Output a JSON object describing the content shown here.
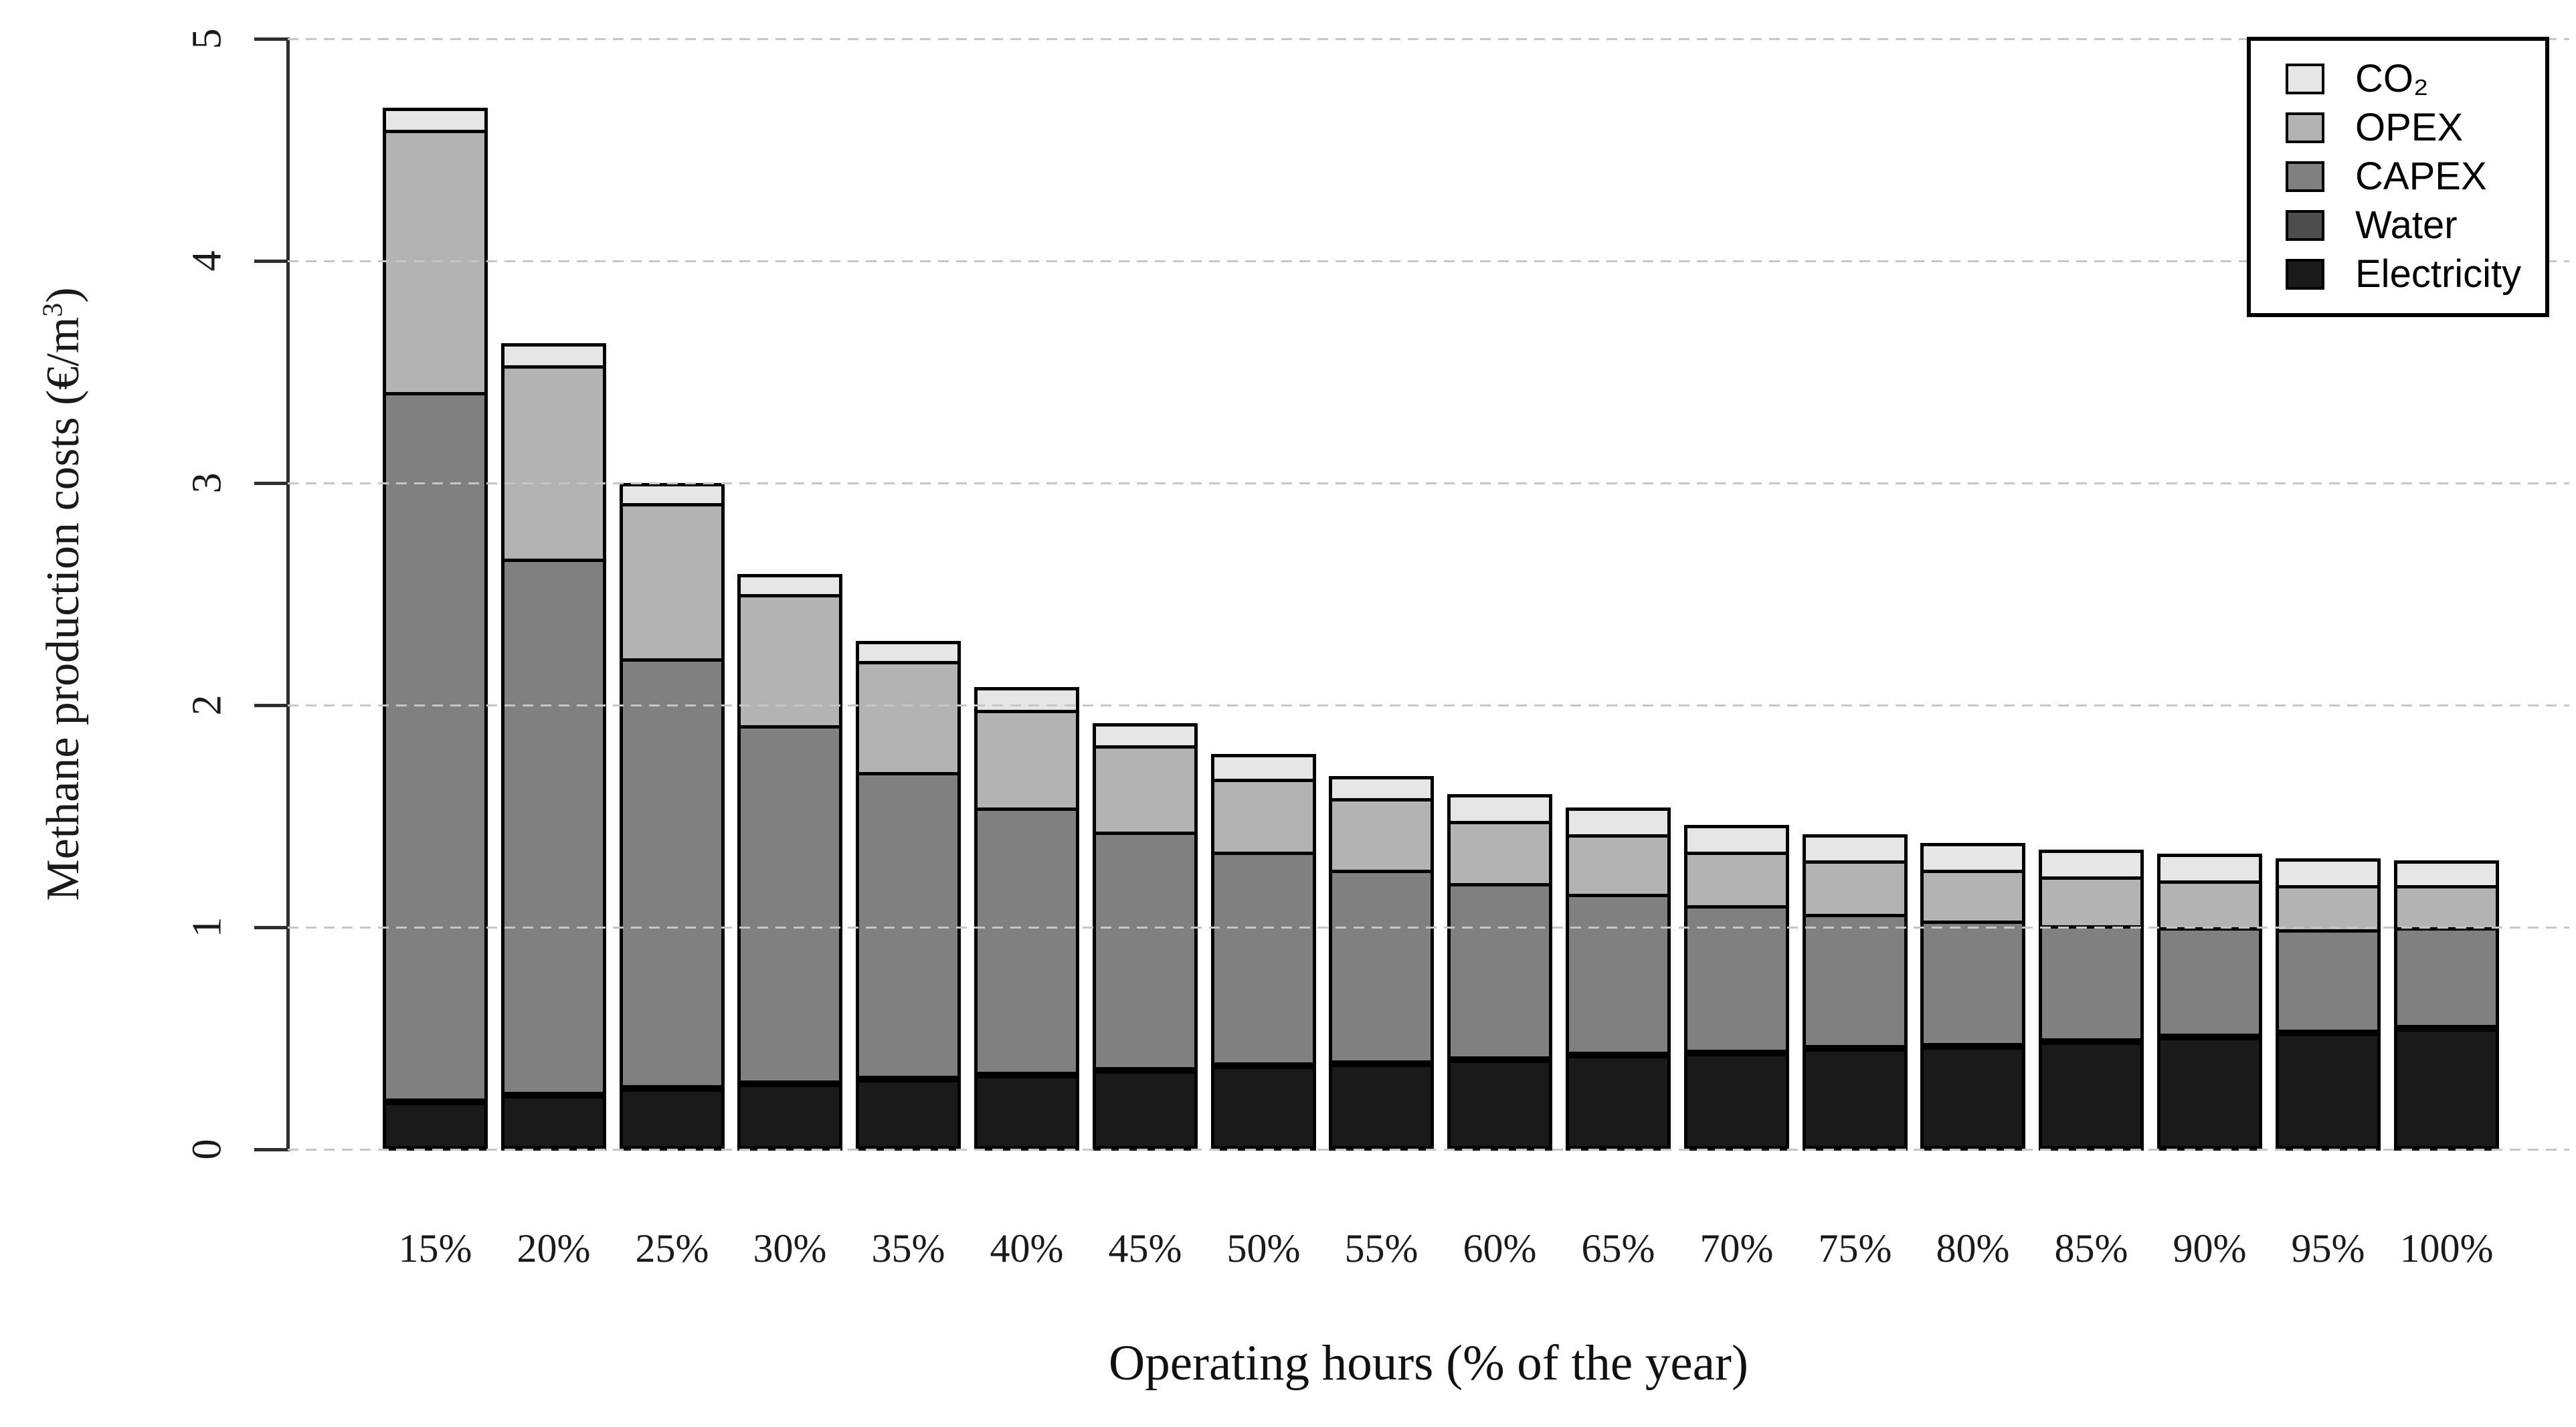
{
  "figure": {
    "type": "stacked-bar-chart",
    "background": "#ffffff"
  },
  "y_axis": {
    "title_prefix": "Methane production costs (€/m",
    "title_sup": "3",
    "title_suffix": ")",
    "ticks": [
      "0",
      "1",
      "2",
      "3",
      "4",
      "5"
    ],
    "range": [
      0,
      5
    ]
  },
  "x_axis": {
    "title": "Operating hours (% of the year)"
  },
  "legend": {
    "position": "top-right",
    "items": [
      {
        "key": "co2",
        "label": "CO₂",
        "color": "#E6E6E6"
      },
      {
        "key": "opex",
        "label": "OPEX",
        "color": "#B3B3B3"
      },
      {
        "key": "capex",
        "label": "CAPEX",
        "color": "#808080"
      },
      {
        "key": "water",
        "label": "Water",
        "color": "#4D4D4D"
      },
      {
        "key": "electricity",
        "label": "Electricity",
        "color": "#1A1A1A"
      }
    ]
  },
  "style": {
    "grid_color": "#c6c6c6",
    "axis_color": "#2e2e2e",
    "bar_border_color": "#000000",
    "text_color": "#1a1a1a"
  },
  "chart_data": {
    "type": "bar",
    "stacked": true,
    "title": "",
    "xlabel": "Operating hours (% of the year)",
    "ylabel": "Methane production costs (€/m³)",
    "ylim": [
      0,
      5
    ],
    "yticks": [
      0,
      1,
      2,
      3,
      4,
      5
    ],
    "grid": "horizontal-dashed",
    "legend_position": "top-right",
    "categories": [
      "15%",
      "20%",
      "25%",
      "30%",
      "35%",
      "40%",
      "45%",
      "50%",
      "55%",
      "60%",
      "65%",
      "70%",
      "75%",
      "80%",
      "85%",
      "90%",
      "95%",
      "100%"
    ],
    "series": [
      {
        "name": "Electricity",
        "color": "#1A1A1A",
        "values": [
          0.22,
          0.25,
          0.28,
          0.3,
          0.32,
          0.34,
          0.36,
          0.38,
          0.39,
          0.41,
          0.43,
          0.44,
          0.46,
          0.47,
          0.49,
          0.51,
          0.53,
          0.55
        ]
      },
      {
        "name": "Water",
        "color": "#4D4D4D",
        "values": [
          0.01,
          0.01,
          0.01,
          0.01,
          0.01,
          0.01,
          0.01,
          0.01,
          0.01,
          0.01,
          0.01,
          0.01,
          0.01,
          0.01,
          0.01,
          0.01,
          0.01,
          0.01
        ]
      },
      {
        "name": "CAPEX",
        "color": "#808080",
        "values": [
          3.18,
          2.4,
          1.92,
          1.6,
          1.37,
          1.19,
          1.06,
          0.95,
          0.86,
          0.78,
          0.71,
          0.65,
          0.59,
          0.55,
          0.51,
          0.48,
          0.45,
          0.44
        ]
      },
      {
        "name": "OPEX",
        "color": "#B3B3B3",
        "values": [
          1.18,
          0.87,
          0.7,
          0.59,
          0.5,
          0.44,
          0.39,
          0.33,
          0.32,
          0.28,
          0.27,
          0.24,
          0.24,
          0.23,
          0.22,
          0.21,
          0.2,
          0.19
        ]
      },
      {
        "name": "CO₂",
        "color": "#E6E6E6",
        "values": [
          0.1,
          0.1,
          0.09,
          0.09,
          0.09,
          0.1,
          0.1,
          0.11,
          0.1,
          0.12,
          0.12,
          0.12,
          0.12,
          0.12,
          0.12,
          0.12,
          0.12,
          0.11
        ]
      }
    ],
    "totals": [
      4.69,
      3.63,
      3.0,
      2.59,
      2.29,
      2.08,
      1.92,
      1.78,
      1.68,
      1.6,
      1.54,
      1.46,
      1.42,
      1.38,
      1.35,
      1.33,
      1.31,
      1.3
    ]
  }
}
